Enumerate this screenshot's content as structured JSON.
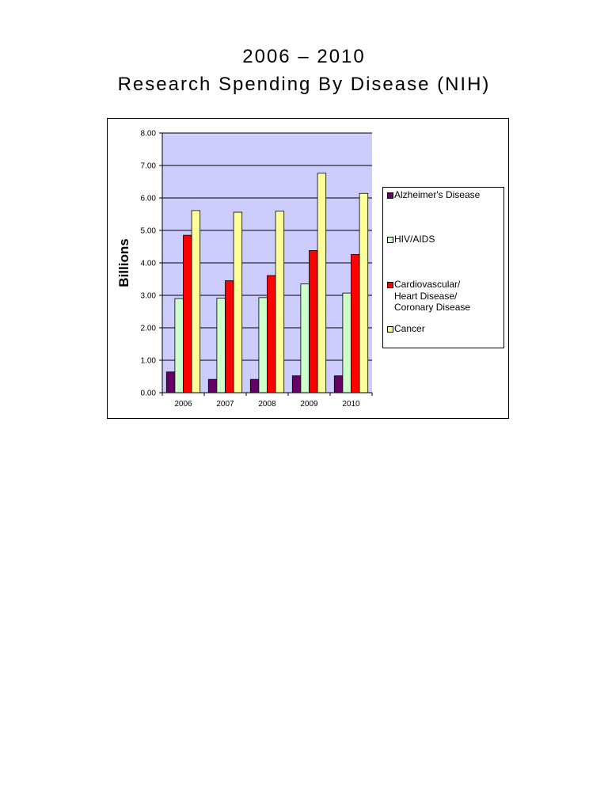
{
  "page": {
    "title_line_1": "2006 – 2010",
    "title_line_2": "Research Spending By Disease (NIH)"
  },
  "chart_data": {
    "type": "bar",
    "title": "2006 – 2010 Research Spending By Disease (NIH)",
    "xlabel": "",
    "ylabel": "Billions",
    "categories": [
      "2006",
      "2007",
      "2008",
      "2009",
      "2010"
    ],
    "ylim": [
      0,
      8
    ],
    "yticks": [
      "0.00",
      "1.00",
      "2.00",
      "3.00",
      "4.00",
      "5.00",
      "6.00",
      "7.00",
      "8.00"
    ],
    "grid": true,
    "plot_background": "#ccccff",
    "legend_position": "right",
    "series": [
      {
        "name": "Alzheimer's Disease",
        "color": "#660066",
        "values": [
          0.64,
          0.41,
          0.41,
          0.52,
          0.52
        ]
      },
      {
        "name": "HIV/AIDS",
        "color": "#ccffcc",
        "values": [
          2.9,
          2.91,
          2.93,
          3.35,
          3.07
        ]
      },
      {
        "name": "Cardiovascular/\nHeart Disease/\nCoronary Disease",
        "color": "#ff0000",
        "values": [
          4.85,
          3.45,
          3.61,
          4.38,
          4.26
        ]
      },
      {
        "name": "Cancer",
        "color": "#ffff99",
        "values": [
          5.61,
          5.56,
          5.59,
          6.76,
          6.14
        ]
      }
    ]
  }
}
